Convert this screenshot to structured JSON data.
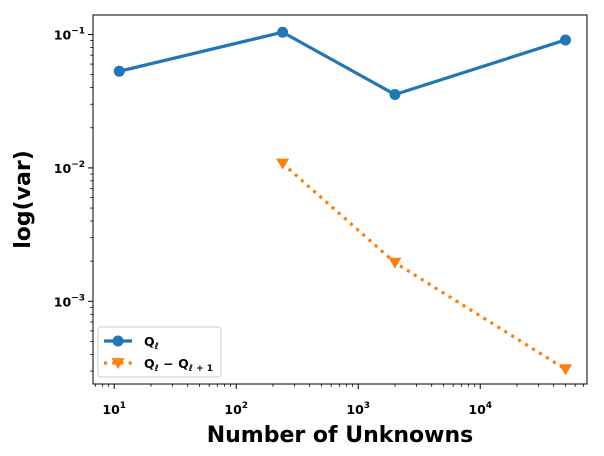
{
  "chart_data": {
    "type": "line",
    "title": "",
    "xlabel": "Number of Unknowns",
    "ylabel": "log(var)",
    "xscale": "log",
    "yscale": "log",
    "xlim": [
      6.7,
      75000
    ],
    "ylim": [
      0.00024,
      0.14
    ],
    "x_ticks": [
      {
        "value": 10,
        "base": "10",
        "exp": "1"
      },
      {
        "value": 100,
        "base": "10",
        "exp": "2"
      },
      {
        "value": 1000,
        "base": "10",
        "exp": "3"
      },
      {
        "value": 10000,
        "base": "10",
        "exp": "4"
      }
    ],
    "y_ticks": [
      {
        "value": 0.001,
        "base": "10",
        "exp": "−3"
      },
      {
        "value": 0.01,
        "base": "10",
        "exp": "−2"
      },
      {
        "value": 0.1,
        "base": "10",
        "exp": "−1"
      }
    ],
    "grid": false,
    "legend_position": "lower-left",
    "series": [
      {
        "legend_main": "Q",
        "legend_sub": "ℓ",
        "color": "#1f77b4",
        "linestyle": "solid",
        "marker": "circle",
        "x": [
          11,
          240,
          2000,
          50000
        ],
        "y": [
          0.053,
          0.104,
          0.0355,
          0.091
        ]
      },
      {
        "legend_main": "Q",
        "legend_sub": "ℓ",
        "legend_mid": " − Q",
        "legend_sub2": "ℓ + 1",
        "color": "#ff7f0e",
        "linestyle": "dotted",
        "marker": "triangle-down",
        "x": [
          240,
          2000,
          50000
        ],
        "y": [
          0.0108,
          0.00195,
          0.00031
        ]
      }
    ]
  }
}
